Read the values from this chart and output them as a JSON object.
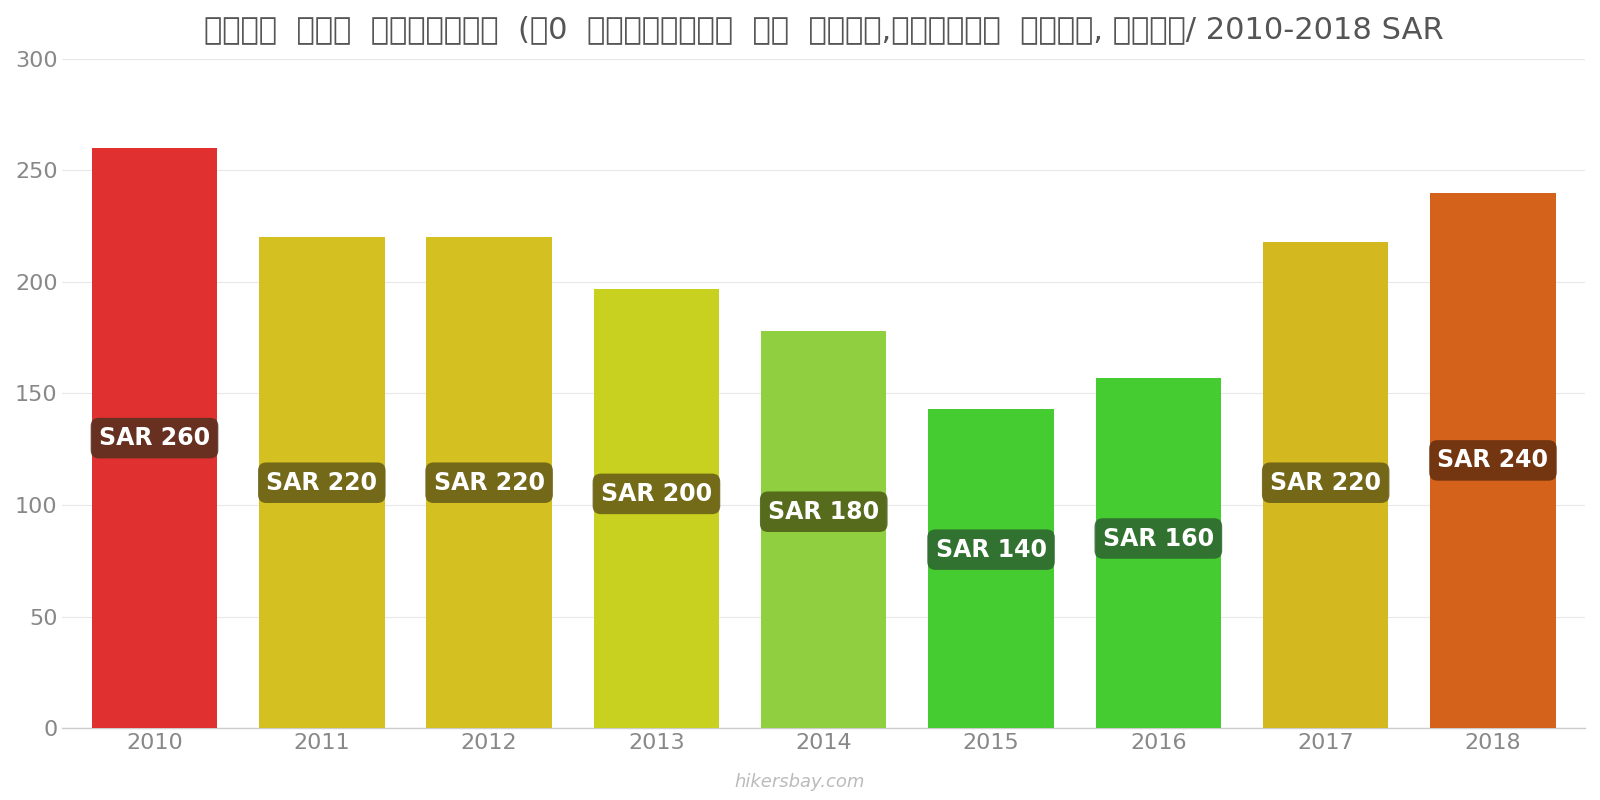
{
  "years": [
    2010,
    2011,
    2012,
    2013,
    2014,
    2015,
    2016,
    2017,
    2018
  ],
  "values": [
    260,
    220,
    220,
    197,
    178,
    143,
    157,
    218,
    240
  ],
  "bar_colors": [
    "#e03030",
    "#d4c020",
    "#d4c020",
    "#c8d020",
    "#90d040",
    "#44cc30",
    "#44cc30",
    "#d4b820",
    "#d4621a"
  ],
  "label_bg_colors": [
    "#5a3020",
    "#6a6018",
    "#6a6018",
    "#6a6018",
    "#506018",
    "#306830",
    "#306830",
    "#6a6018",
    "#6a3010"
  ],
  "label_values": [
    "SAR 260",
    "SAR 220",
    "SAR 220",
    "SAR 200",
    "SAR 180",
    "SAR 140",
    "SAR 160",
    "SAR 220",
    "SAR 240"
  ],
  "title": "सौदी  अरब  इंटरनेट  (๠0  एमबीपीएस  या  अधिक,असीमित  डेटा, केबल/ 2010-2018 SAR",
  "ylim": [
    0,
    300
  ],
  "yticks": [
    0,
    50,
    100,
    150,
    200,
    250,
    300
  ],
  "watermark": "hikersbay.com",
  "bg_color": "#ffffff",
  "label_text_color": "#ffffff",
  "label_fontsize": 17,
  "title_fontsize": 22,
  "bar_width": 0.75,
  "label_y_positions": [
    130,
    110,
    110,
    105,
    97,
    80,
    85,
    110,
    120
  ]
}
